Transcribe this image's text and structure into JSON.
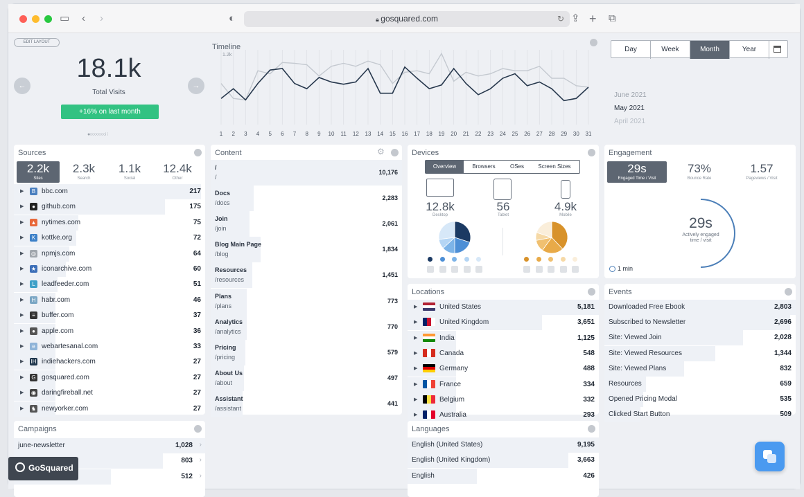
{
  "browser": {
    "url": "gosquared.com"
  },
  "overview": {
    "edit_layout": "EDIT LAYOUT",
    "total": "18.1k",
    "total_label": "Total Visits",
    "change": "+16% on last month"
  },
  "timeline": {
    "title": "Timeline",
    "ymax": "1.2k",
    "days": [
      "1",
      "2",
      "3",
      "4",
      "5",
      "6",
      "7",
      "8",
      "9",
      "10",
      "11",
      "12",
      "13",
      "14",
      "15",
      "16",
      "17",
      "18",
      "19",
      "20",
      "21",
      "22",
      "23",
      "24",
      "25",
      "26",
      "27",
      "28",
      "29",
      "30",
      "31"
    ],
    "current": [
      0.35,
      0.48,
      0.33,
      0.55,
      0.73,
      0.75,
      0.55,
      0.48,
      0.63,
      0.57,
      0.54,
      0.57,
      0.75,
      0.42,
      0.42,
      0.77,
      0.62,
      0.48,
      0.53,
      0.75,
      0.55,
      0.4,
      0.48,
      0.62,
      0.68,
      0.52,
      0.57,
      0.48,
      0.32,
      0.35,
      0.5
    ],
    "previous": [
      0.55,
      0.35,
      0.33,
      0.72,
      0.68,
      0.83,
      0.82,
      0.8,
      0.65,
      0.78,
      0.82,
      0.78,
      0.85,
      0.8,
      0.55,
      0.7,
      0.72,
      0.68,
      0.95,
      0.58,
      0.7,
      0.65,
      0.68,
      0.75,
      0.72,
      0.72,
      0.78,
      0.62,
      0.62,
      0.52,
      0.5
    ],
    "colors": {
      "current": "#27384d",
      "previous": "#c4c9d0"
    }
  },
  "range": {
    "tabs": [
      "Day",
      "Week",
      "Month",
      "Year"
    ],
    "active": "Month",
    "months": [
      "June 2021",
      "May 2021",
      "April 2021"
    ],
    "selected_month": "May 2021"
  },
  "sources": {
    "title": "Sources",
    "stats": [
      {
        "value": "2.2k",
        "label": "Sites"
      },
      {
        "value": "2.3k",
        "label": "Search"
      },
      {
        "value": "1.1k",
        "label": "Social"
      },
      {
        "value": "12.4k",
        "label": "Other"
      }
    ],
    "items": [
      {
        "name": "bbc.com",
        "value": "217",
        "icon": "bbc-icon",
        "color": "#4a7fbf",
        "glyph": "B"
      },
      {
        "name": "github.com",
        "value": "175",
        "icon": "github-icon",
        "color": "#222",
        "glyph": "●"
      },
      {
        "name": "nytimes.com",
        "value": "75",
        "icon": "nytimes-icon",
        "color": "#e8683a",
        "glyph": "▲"
      },
      {
        "name": "kottke.org",
        "value": "72",
        "icon": "kottke-icon",
        "color": "#3c80c8",
        "glyph": "K"
      },
      {
        "name": "npmjs.com",
        "value": "64",
        "icon": "npm-icon",
        "color": "#a0a6ad",
        "glyph": "◎"
      },
      {
        "name": "iconarchive.com",
        "value": "60",
        "icon": "iconarchive-icon",
        "color": "#3d6fb8",
        "glyph": "★"
      },
      {
        "name": "leadfeeder.com",
        "value": "51",
        "icon": "leadfeeder-icon",
        "color": "#3fa0c8",
        "glyph": "L"
      },
      {
        "name": "habr.com",
        "value": "46",
        "icon": "habr-icon",
        "color": "#7aa6c4",
        "glyph": "H"
      },
      {
        "name": "buffer.com",
        "value": "37",
        "icon": "buffer-icon",
        "color": "#333",
        "glyph": "≡"
      },
      {
        "name": "apple.com",
        "value": "36",
        "icon": "apple-icon",
        "color": "#555",
        "glyph": "●"
      },
      {
        "name": "webartesanal.com",
        "value": "33",
        "icon": "webartesanal-icon",
        "color": "#8fb4d8",
        "glyph": "e"
      },
      {
        "name": "indiehackers.com",
        "value": "27",
        "icon": "indiehackers-icon",
        "color": "#1f364d",
        "glyph": "IH"
      },
      {
        "name": "gosquared.com",
        "value": "27",
        "icon": "gosquared-icon",
        "color": "#333",
        "glyph": "G"
      },
      {
        "name": "daringfireball.net",
        "value": "27",
        "icon": "daringfireball-icon",
        "color": "#444",
        "glyph": "◉"
      },
      {
        "name": "newyorker.com",
        "value": "27",
        "icon": "newyorker-icon",
        "color": "#555",
        "glyph": "♞"
      }
    ]
  },
  "content": {
    "title": "Content",
    "items": [
      {
        "title": "/",
        "path": "/",
        "value": "10,176"
      },
      {
        "title": "Docs",
        "path": "/docs",
        "value": "2,283"
      },
      {
        "title": "Join",
        "path": "/join",
        "value": "2,061"
      },
      {
        "title": "Blog Main Page",
        "path": "/blog",
        "value": "1,834"
      },
      {
        "title": "Resources",
        "path": "/resources",
        "value": "1,451"
      },
      {
        "title": "Plans",
        "path": "/plans",
        "value": "773"
      },
      {
        "title": "Analytics",
        "path": "/analytics",
        "value": "770"
      },
      {
        "title": "Pricing",
        "path": "/pricing",
        "value": "579"
      },
      {
        "title": "About Us",
        "path": "/about",
        "value": "497"
      },
      {
        "title": "Assistant",
        "path": "/assistant",
        "value": "441"
      }
    ]
  },
  "devices": {
    "title": "Devices",
    "tabs": [
      "Overview",
      "Browsers",
      "OSes",
      "Screen Sizes"
    ],
    "active": "Overview",
    "items": [
      {
        "value": "12.8k",
        "label": "Desktop"
      },
      {
        "value": "56",
        "label": "Tablet"
      },
      {
        "value": "4.9k",
        "label": "Mobile"
      }
    ],
    "pie1_colors": [
      "#1b3a63",
      "#4d8fd6",
      "#7db4e8",
      "#b4d5f4",
      "#d7e8f8"
    ],
    "pie2_colors": [
      "#d8922a",
      "#e8aa48",
      "#f0c070",
      "#f6d9a6",
      "#faeeda"
    ]
  },
  "engagement": {
    "title": "Engagement",
    "stats": [
      {
        "value": "29s",
        "label": "Engaged Time / Visit"
      },
      {
        "value": "73%",
        "label": "Bounce Rate"
      },
      {
        "value": "1.57",
        "label": "Pageviews / Visit"
      }
    ],
    "center_value": "29s",
    "center_label_1": "Actively engaged",
    "center_label_2": "time / visit",
    "legend": "1 min"
  },
  "locations": {
    "title": "Locations",
    "items": [
      {
        "name": "United States",
        "value": "5,181",
        "flag": "us"
      },
      {
        "name": "United Kingdom",
        "value": "3,651",
        "flag": "uk"
      },
      {
        "name": "India",
        "value": "1,125",
        "flag": "in"
      },
      {
        "name": "Canada",
        "value": "548",
        "flag": "ca"
      },
      {
        "name": "Germany",
        "value": "488",
        "flag": "de"
      },
      {
        "name": "France",
        "value": "334",
        "flag": "fr"
      },
      {
        "name": "Belgium",
        "value": "332",
        "flag": "be"
      },
      {
        "name": "Australia",
        "value": "293",
        "flag": "au"
      }
    ]
  },
  "events": {
    "title": "Events",
    "items": [
      {
        "name": "Downloaded Free Ebook",
        "value": "2,803"
      },
      {
        "name": "Subscribed to Newsletter",
        "value": "2,696"
      },
      {
        "name": "Site: Viewed Join",
        "value": "2,028"
      },
      {
        "name": "Site: Viewed Resources",
        "value": "1,344"
      },
      {
        "name": "Site: Viewed Plans",
        "value": "832"
      },
      {
        "name": "Resources",
        "value": "659"
      },
      {
        "name": "Opened Pricing Modal",
        "value": "535"
      },
      {
        "name": "Clicked Start Button",
        "value": "509"
      }
    ]
  },
  "campaigns": {
    "title": "Campaigns",
    "items": [
      {
        "name": "june-newsletter",
        "value": "1,028"
      },
      {
        "name": "",
        "value": "803"
      },
      {
        "name": "",
        "value": "512"
      }
    ]
  },
  "languages": {
    "title": "Languages",
    "items": [
      {
        "name": "English (United States)",
        "value": "9,195"
      },
      {
        "name": "English (United Kingdom)",
        "value": "3,663"
      },
      {
        "name": "English",
        "value": "426"
      }
    ]
  },
  "brand": {
    "name": "GoSquared"
  }
}
